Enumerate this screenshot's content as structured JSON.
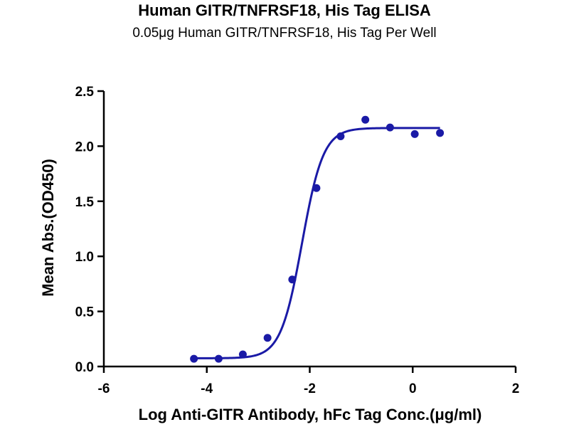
{
  "chart_data": {
    "type": "scatter",
    "title": "Human GITR/TNFRSF18, His Tag ELISA",
    "subtitle": "0.05μg Human GITR/TNFRSF18, His Tag Per Well",
    "xlabel": "Log Anti-GITR Antibody, hFc Tag Conc.(μg/ml)",
    "ylabel": "Mean Abs.(OD450)",
    "xlim": [
      -6,
      2
    ],
    "ylim": [
      0,
      2.5
    ],
    "x_ticks": [
      "-6",
      "-4",
      "-2",
      "0",
      "2"
    ],
    "y_ticks": [
      "0.0",
      "0.5",
      "1.0",
      "1.5",
      "2.0",
      "2.5"
    ],
    "grid": false,
    "legend": "none",
    "series": [
      {
        "x": [
          -4.25,
          -3.77,
          -3.3,
          -2.82,
          -2.34,
          -1.87,
          -1.4,
          -0.92,
          -0.44,
          0.04,
          0.53
        ],
        "y": [
          0.07,
          0.07,
          0.11,
          0.26,
          0.79,
          1.62,
          2.09,
          2.24,
          2.17,
          2.11,
          2.12
        ],
        "color": "#1a1aa6"
      }
    ],
    "fit": {
      "type": "4PL",
      "bottom": 0.075,
      "top": 2.165,
      "ec50_log": -2.15,
      "hill": 2.1,
      "x_range": [
        -4.25,
        0.53
      ],
      "color": "#1a1aa6"
    }
  }
}
